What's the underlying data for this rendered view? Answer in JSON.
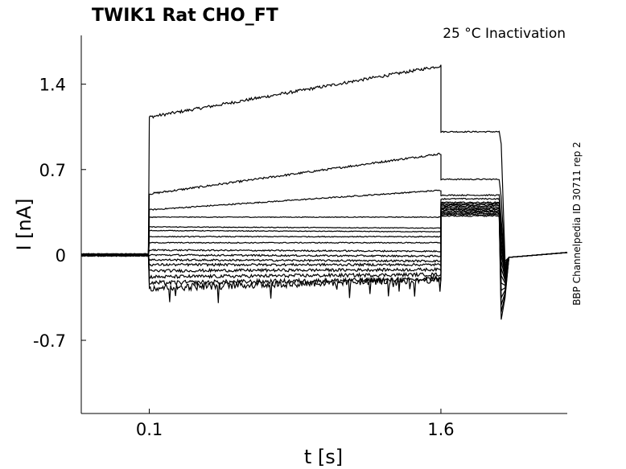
{
  "chart_data": {
    "type": "line",
    "title": "TWIK1  Rat  CHO_FT",
    "condition": "25 °C  Inactivation",
    "side_label": "BBP Channelpedia ID 30711 rep 2",
    "xlabel": "t [s]",
    "ylabel": "I [nA]",
    "xlim": [
      -0.25,
      2.25
    ],
    "ylim": [
      -1.3,
      1.8
    ],
    "xticks": [
      0.1,
      1.6
    ],
    "xtick_labels": [
      "0.1",
      "1.6"
    ],
    "yticks": [
      1.4,
      0.7,
      0,
      -0.7
    ],
    "ytick_labels": [
      "1.4",
      "0.7",
      "0",
      "-0.7"
    ],
    "grid": false,
    "legend": "none",
    "line_color": "#000000",
    "protocol": {
      "baseline_end": 0.1,
      "step_end": 1.6,
      "tail_end": 1.9,
      "tail_time_constant": 0.02
    },
    "series": [
      {
        "baseline": 0.0,
        "step_start": 1.13,
        "step_end": 1.55,
        "tail": 1.01,
        "noise": 0.012
      },
      {
        "baseline": 0.0,
        "step_start": 0.5,
        "step_end": 0.83,
        "tail": 0.62,
        "noise": 0.008
      },
      {
        "baseline": 0.0,
        "step_start": 0.37,
        "step_end": 0.53,
        "tail": 0.49,
        "noise": 0.005
      },
      {
        "baseline": 0.0,
        "step_start": 0.31,
        "step_end": 0.31,
        "tail": 0.46,
        "noise": 0.003
      },
      {
        "baseline": 0.0,
        "step_start": 0.23,
        "step_end": 0.22,
        "tail": 0.43,
        "noise": 0.003
      },
      {
        "baseline": 0.0,
        "step_start": 0.2,
        "step_end": 0.19,
        "tail": 0.42,
        "noise": 0.003
      },
      {
        "baseline": 0.0,
        "step_start": 0.15,
        "step_end": 0.15,
        "tail": 0.41,
        "noise": 0.004
      },
      {
        "baseline": 0.0,
        "step_start": 0.1,
        "step_end": 0.1,
        "tail": 0.4,
        "noise": 0.004
      },
      {
        "baseline": 0.0,
        "step_start": 0.04,
        "step_end": 0.03,
        "tail": 0.39,
        "noise": 0.006
      },
      {
        "baseline": 0.0,
        "step_start": 0.0,
        "step_end": -0.01,
        "tail": 0.38,
        "noise": 0.007
      },
      {
        "baseline": 0.0,
        "step_start": -0.04,
        "step_end": -0.05,
        "tail": 0.37,
        "noise": 0.008
      },
      {
        "baseline": 0.0,
        "step_start": -0.08,
        "step_end": -0.08,
        "tail": 0.36,
        "noise": 0.01
      },
      {
        "baseline": 0.0,
        "step_start": -0.13,
        "step_end": -0.12,
        "tail": 0.35,
        "noise": 0.012
      },
      {
        "baseline": 0.0,
        "step_start": -0.18,
        "step_end": -0.16,
        "tail": 0.34,
        "noise": 0.014
      },
      {
        "baseline": 0.0,
        "step_start": -0.23,
        "step_end": -0.2,
        "tail": 0.33,
        "noise": 0.018
      },
      {
        "baseline": 0.0,
        "step_start": -0.27,
        "step_end": -0.2,
        "tail": 0.32,
        "noise": 0.03
      }
    ]
  }
}
